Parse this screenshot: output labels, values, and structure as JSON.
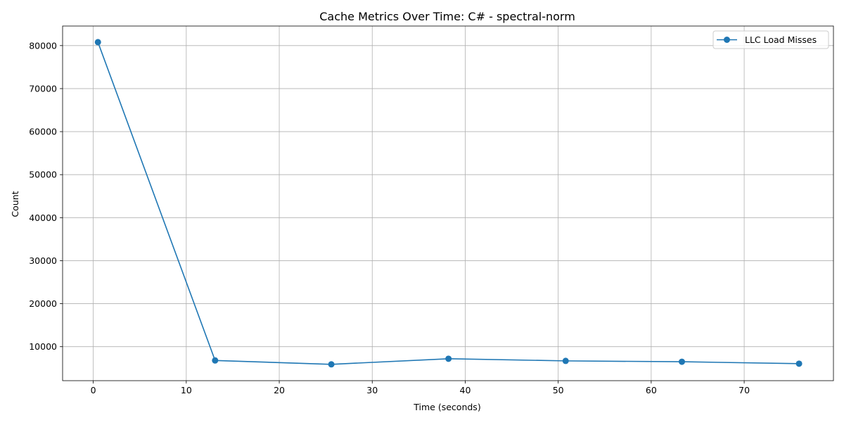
{
  "chart_data": {
    "type": "line",
    "title": "Cache Metrics Over Time: C# - spectral-norm",
    "xlabel": "Time (seconds)",
    "ylabel": "Count",
    "xlim": [
      -3.3,
      79.6
    ],
    "ylim": [
      2100,
      84550
    ],
    "xticks": [
      0,
      10,
      20,
      30,
      40,
      50,
      60,
      70
    ],
    "yticks": [
      10000,
      20000,
      30000,
      40000,
      50000,
      60000,
      70000,
      80000
    ],
    "grid": true,
    "legend_position": "top-right",
    "series": [
      {
        "name": "LLC Load Misses",
        "color": "#1f77b4",
        "marker": "circle",
        "x": [
          0.5,
          13.1,
          25.6,
          38.2,
          50.8,
          63.3,
          75.9
        ],
        "y": [
          80800,
          6800,
          5900,
          7200,
          6700,
          6500,
          6050
        ]
      }
    ]
  }
}
